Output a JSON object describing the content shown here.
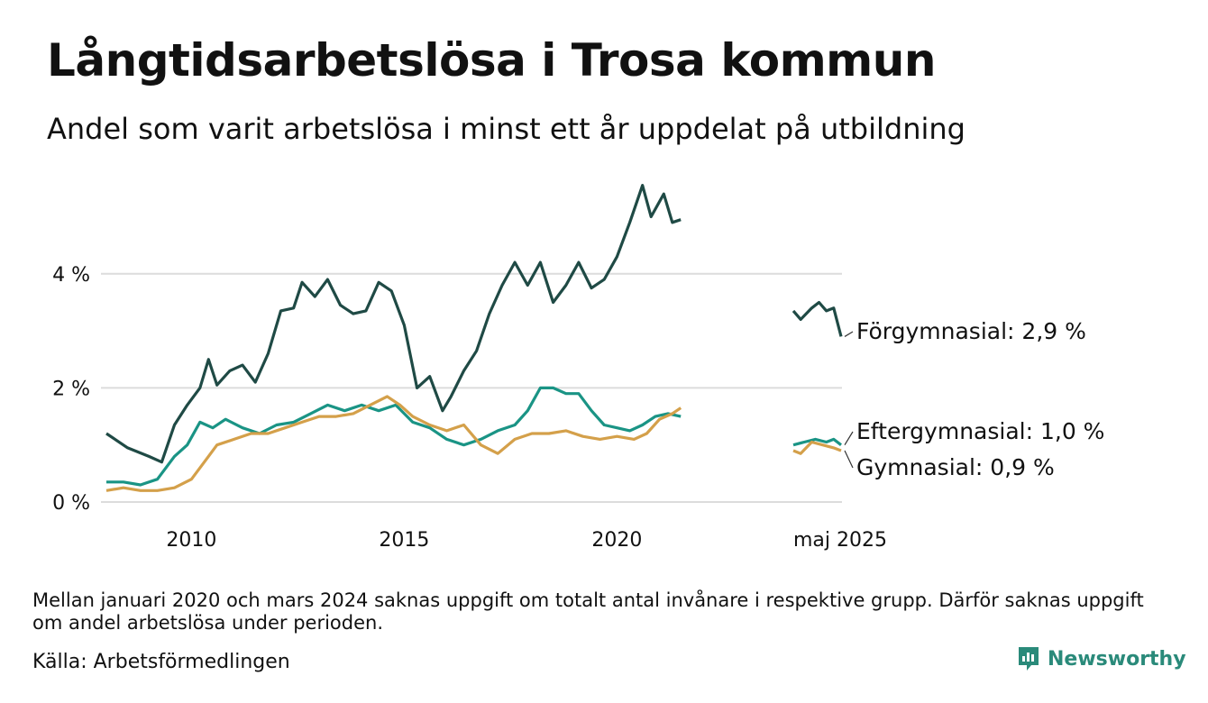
{
  "header": {
    "title": "Långtidsarbetslösa i Trosa kommun",
    "subtitle": "Andel som varit arbetslösa i minst ett år uppdelat på utbildning"
  },
  "footer": {
    "note": "Mellan januari 2020 och mars 2024 saknas uppgift om totalt antal invånare i respektive grupp. Därför saknas uppgift om andel arbetslösa under perioden.",
    "source": "Källa: Arbetsförmedlingen",
    "brand": "Newsworthy",
    "brand_icon": "newsworthy-logo-icon"
  },
  "chart_data": {
    "type": "line",
    "ylim": [
      0,
      6
    ],
    "grid": true,
    "y_ticks": [
      {
        "value": 0,
        "label": "0 %"
      },
      {
        "value": 2,
        "label": "2 %"
      },
      {
        "value": 4,
        "label": "4 %"
      }
    ],
    "x_ticks": [
      {
        "value": 2010,
        "label": "2010"
      },
      {
        "value": 2015,
        "label": "2015"
      },
      {
        "value": 2020,
        "label": "2020"
      }
    ],
    "end_tick": "maj 2025",
    "series": [
      {
        "name": "Förgymnasial",
        "end_label": "Förgymnasial: 2,9 %",
        "color": "#1f4a45",
        "segments": [
          [
            [
              2008.0,
              1.2
            ],
            [
              2008.5,
              0.95
            ],
            [
              2009.0,
              0.8
            ],
            [
              2009.3,
              0.7
            ],
            [
              2009.6,
              1.35
            ],
            [
              2009.9,
              1.7
            ],
            [
              2010.2,
              2.0
            ],
            [
              2010.4,
              2.5
            ],
            [
              2010.6,
              2.05
            ],
            [
              2010.9,
              2.3
            ],
            [
              2011.2,
              2.4
            ],
            [
              2011.5,
              2.1
            ],
            [
              2011.8,
              2.6
            ],
            [
              2012.1,
              3.35
            ],
            [
              2012.4,
              3.4
            ],
            [
              2012.6,
              3.85
            ],
            [
              2012.9,
              3.6
            ],
            [
              2013.2,
              3.9
            ],
            [
              2013.5,
              3.45
            ],
            [
              2013.8,
              3.3
            ],
            [
              2014.1,
              3.35
            ],
            [
              2014.4,
              3.85
            ],
            [
              2014.7,
              3.7
            ],
            [
              2015.0,
              3.1
            ],
            [
              2015.3,
              2.0
            ],
            [
              2015.6,
              2.2
            ],
            [
              2015.9,
              1.6
            ],
            [
              2016.1,
              1.85
            ],
            [
              2016.4,
              2.3
            ],
            [
              2016.7,
              2.65
            ],
            [
              2017.0,
              3.3
            ],
            [
              2017.3,
              3.8
            ],
            [
              2017.6,
              4.2
            ],
            [
              2017.9,
              3.8
            ],
            [
              2018.2,
              4.2
            ],
            [
              2018.5,
              3.5
            ],
            [
              2018.8,
              3.8
            ],
            [
              2019.1,
              4.2
            ],
            [
              2019.4,
              3.75
            ],
            [
              2019.7,
              3.9
            ],
            [
              2020.0,
              4.3
            ],
            [
              2020.3,
              4.9
            ],
            [
              2020.6,
              5.55
            ],
            [
              2020.8,
              5.0
            ],
            [
              2021.1,
              5.4
            ],
            [
              2021.3,
              4.9
            ],
            [
              2021.5,
              4.95
            ]
          ],
          [
            [
              2024.2,
              3.35
            ],
            [
              2024.4,
              3.2
            ],
            [
              2024.7,
              3.4
            ],
            [
              2024.9,
              3.5
            ],
            [
              2025.1,
              3.35
            ],
            [
              2025.3,
              3.4
            ],
            [
              2025.5,
              2.9
            ]
          ]
        ]
      },
      {
        "name": "Eftergymnasial",
        "end_label": "Eftergymnasial: 1,0 %",
        "color": "#1a9485",
        "segments": [
          [
            [
              2008.0,
              0.35
            ],
            [
              2008.4,
              0.35
            ],
            [
              2008.8,
              0.3
            ],
            [
              2009.2,
              0.4
            ],
            [
              2009.6,
              0.8
            ],
            [
              2009.9,
              1.0
            ],
            [
              2010.2,
              1.4
            ],
            [
              2010.5,
              1.3
            ],
            [
              2010.8,
              1.45
            ],
            [
              2011.2,
              1.3
            ],
            [
              2011.6,
              1.2
            ],
            [
              2012.0,
              1.35
            ],
            [
              2012.4,
              1.4
            ],
            [
              2012.8,
              1.55
            ],
            [
              2013.2,
              1.7
            ],
            [
              2013.6,
              1.6
            ],
            [
              2014.0,
              1.7
            ],
            [
              2014.4,
              1.6
            ],
            [
              2014.8,
              1.7
            ],
            [
              2015.2,
              1.4
            ],
            [
              2015.6,
              1.3
            ],
            [
              2016.0,
              1.1
            ],
            [
              2016.4,
              1.0
            ],
            [
              2016.8,
              1.1
            ],
            [
              2017.2,
              1.25
            ],
            [
              2017.6,
              1.35
            ],
            [
              2017.9,
              1.6
            ],
            [
              2018.2,
              2.0
            ],
            [
              2018.5,
              2.0
            ],
            [
              2018.8,
              1.9
            ],
            [
              2019.1,
              1.9
            ],
            [
              2019.4,
              1.6
            ],
            [
              2019.7,
              1.35
            ],
            [
              2020.0,
              1.3
            ],
            [
              2020.3,
              1.25
            ],
            [
              2020.6,
              1.35
            ],
            [
              2020.9,
              1.5
            ],
            [
              2021.2,
              1.55
            ],
            [
              2021.5,
              1.5
            ]
          ],
          [
            [
              2024.2,
              1.0
            ],
            [
              2024.5,
              1.05
            ],
            [
              2024.8,
              1.1
            ],
            [
              2025.1,
              1.05
            ],
            [
              2025.3,
              1.1
            ],
            [
              2025.5,
              1.0
            ]
          ]
        ]
      },
      {
        "name": "Gymnasial",
        "end_label": "Gymnasial: 0,9 %",
        "color": "#d4a04a",
        "segments": [
          [
            [
              2008.0,
              0.2
            ],
            [
              2008.4,
              0.25
            ],
            [
              2008.8,
              0.2
            ],
            [
              2009.2,
              0.2
            ],
            [
              2009.6,
              0.25
            ],
            [
              2010.0,
              0.4
            ],
            [
              2010.3,
              0.7
            ],
            [
              2010.6,
              1.0
            ],
            [
              2011.0,
              1.1
            ],
            [
              2011.4,
              1.2
            ],
            [
              2011.8,
              1.2
            ],
            [
              2012.2,
              1.3
            ],
            [
              2012.6,
              1.4
            ],
            [
              2013.0,
              1.5
            ],
            [
              2013.4,
              1.5
            ],
            [
              2013.8,
              1.55
            ],
            [
              2014.2,
              1.7
            ],
            [
              2014.6,
              1.85
            ],
            [
              2014.9,
              1.7
            ],
            [
              2015.2,
              1.5
            ],
            [
              2015.6,
              1.35
            ],
            [
              2016.0,
              1.25
            ],
            [
              2016.4,
              1.35
            ],
            [
              2016.8,
              1.0
            ],
            [
              2017.2,
              0.85
            ],
            [
              2017.6,
              1.1
            ],
            [
              2018.0,
              1.2
            ],
            [
              2018.4,
              1.2
            ],
            [
              2018.8,
              1.25
            ],
            [
              2019.2,
              1.15
            ],
            [
              2019.6,
              1.1
            ],
            [
              2020.0,
              1.15
            ],
            [
              2020.4,
              1.1
            ],
            [
              2020.7,
              1.2
            ],
            [
              2021.0,
              1.45
            ],
            [
              2021.3,
              1.55
            ],
            [
              2021.5,
              1.65
            ]
          ],
          [
            [
              2024.2,
              0.9
            ],
            [
              2024.4,
              0.85
            ],
            [
              2024.7,
              1.05
            ],
            [
              2025.0,
              1.0
            ],
            [
              2025.3,
              0.95
            ],
            [
              2025.5,
              0.9
            ]
          ]
        ]
      }
    ]
  }
}
